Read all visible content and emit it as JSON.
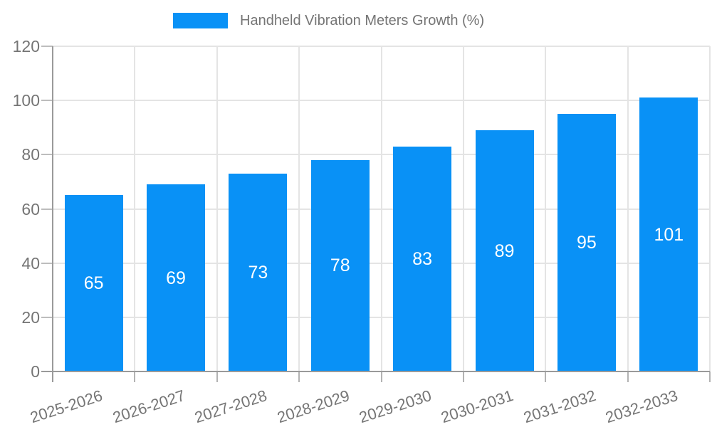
{
  "legend": {
    "position": "top",
    "items": [
      {
        "label": "Handheld Vibration Meters Growth (%)",
        "color": "#0991f6"
      }
    ]
  },
  "chart_data": {
    "type": "bar",
    "title": "",
    "xlabel": "",
    "ylabel": "",
    "categories": [
      "2025-2026",
      "2026-2027",
      "2027-2028",
      "2028-2029",
      "2029-2030",
      "2030-2031",
      "2031-2032",
      "2032-2033"
    ],
    "series": [
      {
        "name": "Handheld Vibration Meters Growth (%)",
        "values": [
          65,
          69,
          73,
          78,
          83,
          89,
          95,
          101
        ],
        "color": "#0991f6"
      }
    ],
    "value_labels": "inside-center, white",
    "ylim": [
      0,
      120
    ],
    "yticks": [
      0,
      20,
      40,
      60,
      80,
      100,
      120
    ],
    "grid": "horizontal at yticks + vertical at category band edges",
    "legend_position": "top-center",
    "x_label_rotation_deg": -18,
    "colors": {
      "bar": "#0991f6",
      "bar_label": "#ffffff",
      "axis_text": "#757575",
      "axis_line": "#9a9a9a",
      "gridline": "#e4e4e4",
      "tick": "#b3b3b3",
      "background": "#ffffff"
    }
  }
}
